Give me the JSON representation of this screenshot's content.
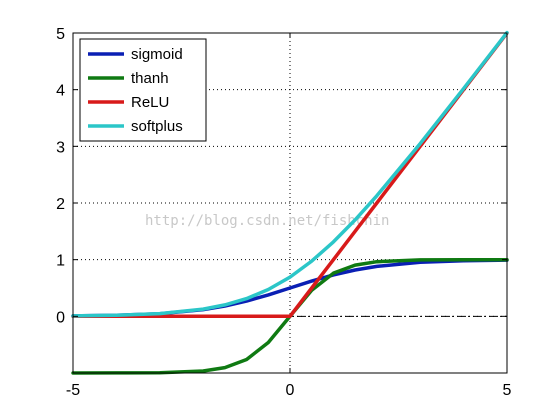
{
  "chart_data": {
    "type": "line",
    "title": "",
    "xlabel": "",
    "ylabel": "",
    "xlim": [
      -5,
      5
    ],
    "ylim": [
      -1,
      5
    ],
    "grid": true,
    "grid_style": "dotted",
    "legend_position": "top-left",
    "x_ticks": [
      "-5",
      "0",
      "5"
    ],
    "y_ticks": [
      "0",
      "1",
      "2",
      "3",
      "4",
      "5"
    ],
    "x": [
      -5,
      -4,
      -3,
      -2,
      -1.5,
      -1,
      -0.5,
      0,
      0.5,
      1,
      1.5,
      2,
      3,
      4,
      5
    ],
    "series": [
      {
        "name": "sigmoid",
        "color": "#0a1fb4",
        "values": [
          0.007,
          0.018,
          0.047,
          0.119,
          0.182,
          0.269,
          0.378,
          0.5,
          0.622,
          0.731,
          0.818,
          0.881,
          0.953,
          0.982,
          0.993
        ]
      },
      {
        "name": "thanh",
        "color": "#0f7a12",
        "values": [
          -1.0,
          -0.999,
          -0.995,
          -0.964,
          -0.905,
          -0.762,
          -0.462,
          0.0,
          0.462,
          0.762,
          0.905,
          0.964,
          0.995,
          0.999,
          1.0
        ]
      },
      {
        "name": "ReLU",
        "color": "#d81a1a",
        "values": [
          0,
          0,
          0,
          0,
          0,
          0,
          0,
          0,
          0.5,
          1,
          1.5,
          2,
          3,
          4,
          5
        ]
      },
      {
        "name": "softplus",
        "color": "#2bc6c8",
        "values": [
          0.007,
          0.018,
          0.049,
          0.127,
          0.201,
          0.313,
          0.474,
          0.693,
          0.974,
          1.313,
          1.701,
          2.127,
          3.049,
          4.018,
          5.007
        ]
      }
    ],
    "reference_line": {
      "y": 0,
      "style": "dash-dot",
      "color": "#000000"
    },
    "watermark": "http://blog.csdn.net/fishchin"
  }
}
